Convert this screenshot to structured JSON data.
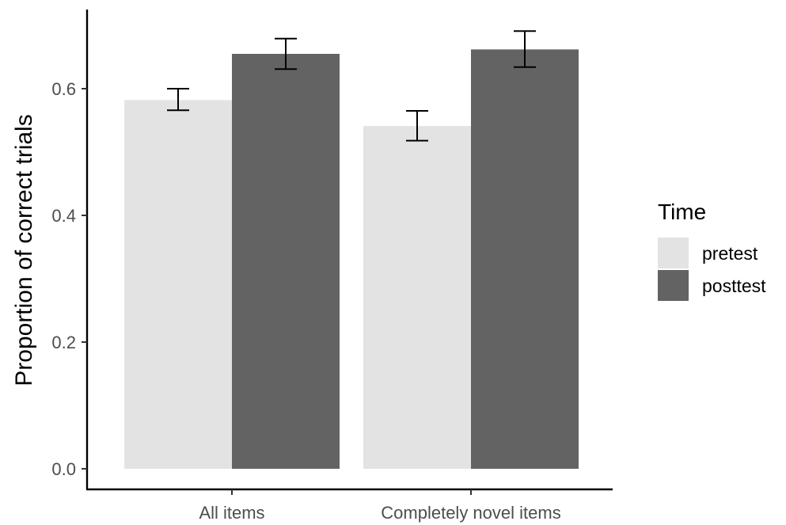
{
  "chart_data": {
    "type": "bar",
    "categories": [
      "All items",
      "Completely novel items"
    ],
    "series": [
      {
        "name": "pretest",
        "color": "#e3e3e3",
        "values": [
          0.582,
          0.541
        ],
        "error_low": [
          0.566,
          0.518
        ],
        "error_high": [
          0.6,
          0.565
        ]
      },
      {
        "name": "posttest",
        "color": "#636363",
        "values": [
          0.655,
          0.662
        ],
        "error_low": [
          0.631,
          0.634
        ],
        "error_high": [
          0.679,
          0.691
        ]
      }
    ],
    "xlabel": "",
    "ylabel": "Proportion of correct trials",
    "ylim": [
      0,
      0.72
    ],
    "yticks": [
      "0.0",
      "0.2",
      "0.4",
      "0.6"
    ],
    "legend": {
      "title": "Time",
      "position": "right"
    },
    "grid": false
  }
}
